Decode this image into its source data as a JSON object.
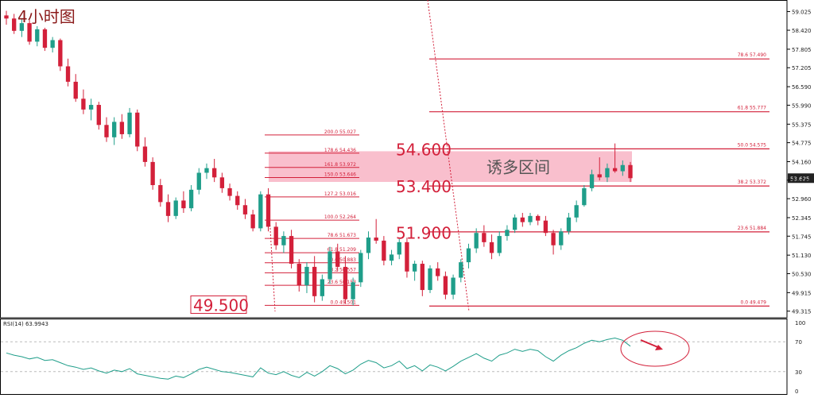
{
  "chart_data": [
    {
      "type": "candlestick",
      "title": "4小时图",
      "ylim": [
        49.1,
        59.4
      ],
      "y_ticks": [
        "59.025",
        "58.420",
        "57.805",
        "57.205",
        "56.590",
        "55.990",
        "55.375",
        "54.775",
        "54.160",
        "53.560",
        "52.960",
        "52.345",
        "51.745",
        "51.130",
        "50.530",
        "49.915",
        "49.315"
      ],
      "last_price": "53.625",
      "colors": {
        "up": "#1f9e8a",
        "down": "#d3203a",
        "fib": "#d3203a",
        "zone": "#f8b4c4",
        "last_price_bg": "#222222"
      },
      "zone": {
        "top": 54.6,
        "bottom": 53.4,
        "label": "诱多区间"
      },
      "big_levels": [
        {
          "text": "54.600",
          "value": 54.6
        },
        {
          "text": "53.400",
          "value": 53.4
        },
        {
          "text": "51.900",
          "value": 51.9
        }
      ],
      "boxed_level": {
        "text": "49.500",
        "value": 49.5
      },
      "fib_left": [
        {
          "label": "200.0  55.027",
          "value": 55.027
        },
        {
          "label": "178.6  54.436",
          "value": 54.436
        },
        {
          "label": "161.8  53.972",
          "value": 53.972
        },
        {
          "label": "150.0  53.646",
          "value": 53.646
        },
        {
          "label": "127.2  53.016",
          "value": 53.016
        },
        {
          "label": "100.0  52.264",
          "value": 52.264
        },
        {
          "label": "78.6  51.673",
          "value": 51.673
        },
        {
          "label": "61.8  51.209",
          "value": 51.209
        },
        {
          "label": "50.0  50.883",
          "value": 50.883
        },
        {
          "label": "38.2  50.557",
          "value": 50.557
        },
        {
          "label": "23.6  50.153",
          "value": 50.153
        },
        {
          "label": "0.0  49.501",
          "value": 49.501
        }
      ],
      "fib_right": [
        {
          "label": "78.6  57.490",
          "value": 57.49
        },
        {
          "label": "61.8  55.777",
          "value": 55.777
        },
        {
          "label": "50.0  54.575",
          "value": 54.575
        },
        {
          "label": "38.2  53.372",
          "value": 53.372
        },
        {
          "label": "23.6  51.884",
          "value": 51.884
        },
        {
          "label": "0.0  49.479",
          "value": 49.479
        }
      ],
      "candles": [
        [
          58.9,
          59.05,
          58.6,
          58.8
        ],
        [
          58.8,
          58.95,
          58.3,
          58.4
        ],
        [
          58.4,
          58.8,
          58.2,
          58.65
        ],
        [
          58.65,
          58.75,
          57.95,
          58.05
        ],
        [
          58.05,
          58.55,
          57.9,
          58.45
        ],
        [
          58.45,
          58.5,
          57.75,
          57.85
        ],
        [
          57.85,
          58.2,
          57.7,
          58.1
        ],
        [
          58.1,
          58.15,
          57.1,
          57.25
        ],
        [
          57.25,
          57.5,
          56.6,
          56.75
        ],
        [
          56.75,
          57.0,
          56.1,
          56.2
        ],
        [
          56.2,
          56.5,
          55.7,
          55.85
        ],
        [
          55.85,
          56.2,
          55.5,
          56.0
        ],
        [
          56.0,
          56.1,
          55.2,
          55.35
        ],
        [
          55.35,
          55.6,
          54.8,
          54.95
        ],
        [
          54.95,
          55.6,
          54.7,
          55.45
        ],
        [
          55.45,
          55.7,
          54.9,
          55.05
        ],
        [
          55.05,
          55.9,
          54.95,
          55.75
        ],
        [
          55.75,
          55.85,
          54.5,
          54.65
        ],
        [
          54.65,
          54.95,
          54.0,
          54.15
        ],
        [
          54.15,
          54.3,
          53.25,
          53.4
        ],
        [
          53.4,
          53.6,
          52.7,
          52.85
        ],
        [
          52.85,
          53.1,
          52.2,
          52.4
        ],
        [
          52.4,
          53.0,
          52.3,
          52.9
        ],
        [
          52.9,
          53.2,
          52.5,
          52.65
        ],
        [
          52.65,
          53.4,
          52.55,
          53.25
        ],
        [
          53.25,
          53.95,
          53.1,
          53.8
        ],
        [
          53.8,
          54.1,
          53.6,
          53.95
        ],
        [
          53.95,
          54.25,
          53.5,
          53.65
        ],
        [
          53.65,
          53.8,
          53.15,
          53.3
        ],
        [
          53.3,
          53.45,
          52.9,
          53.05
        ],
        [
          53.05,
          53.2,
          52.6,
          52.75
        ],
        [
          52.75,
          52.95,
          52.3,
          52.45
        ],
        [
          52.45,
          52.6,
          51.9,
          52.0
        ],
        [
          52.0,
          53.2,
          51.9,
          53.1
        ],
        [
          53.1,
          53.3,
          51.9,
          52.05
        ],
        [
          52.05,
          52.2,
          51.3,
          51.45
        ],
        [
          51.45,
          51.9,
          51.2,
          51.75
        ],
        [
          51.75,
          51.95,
          50.7,
          50.85
        ],
        [
          50.85,
          51.0,
          49.95,
          50.15
        ],
        [
          50.15,
          50.9,
          49.9,
          50.75
        ],
        [
          50.75,
          51.1,
          49.6,
          49.8
        ],
        [
          49.8,
          50.5,
          49.65,
          50.35
        ],
        [
          50.35,
          51.4,
          50.2,
          51.25
        ],
        [
          51.25,
          51.5,
          50.6,
          50.75
        ],
        [
          50.75,
          51.1,
          49.55,
          49.7
        ],
        [
          49.7,
          50.4,
          49.5,
          50.25
        ],
        [
          50.25,
          51.3,
          50.1,
          51.2
        ],
        [
          51.2,
          51.9,
          51.0,
          51.7
        ],
        [
          51.7,
          52.3,
          51.5,
          51.6
        ],
        [
          51.6,
          51.75,
          50.8,
          50.95
        ],
        [
          50.95,
          51.3,
          50.8,
          51.15
        ],
        [
          51.15,
          51.65,
          51.0,
          51.55
        ],
        [
          51.55,
          51.7,
          50.4,
          50.6
        ],
        [
          50.6,
          50.95,
          50.3,
          50.85
        ],
        [
          50.85,
          50.95,
          49.8,
          50.0
        ],
        [
          50.0,
          50.8,
          49.9,
          50.7
        ],
        [
          50.7,
          50.9,
          50.3,
          50.45
        ],
        [
          50.45,
          50.6,
          49.7,
          49.85
        ],
        [
          49.85,
          50.5,
          49.7,
          50.4
        ],
        [
          50.4,
          51.0,
          50.25,
          50.9
        ],
        [
          50.9,
          51.5,
          50.7,
          51.35
        ],
        [
          51.35,
          52.0,
          51.2,
          51.85
        ],
        [
          51.85,
          52.1,
          51.4,
          51.55
        ],
        [
          51.55,
          51.8,
          51.0,
          51.2
        ],
        [
          51.2,
          51.9,
          51.1,
          51.75
        ],
        [
          51.75,
          52.1,
          51.6,
          51.95
        ],
        [
          51.95,
          52.45,
          51.85,
          52.35
        ],
        [
          52.35,
          52.5,
          52.05,
          52.2
        ],
        [
          52.2,
          52.5,
          52.1,
          52.4
        ],
        [
          52.4,
          52.45,
          52.1,
          52.25
        ],
        [
          52.25,
          52.4,
          51.75,
          51.85
        ],
        [
          51.85,
          51.95,
          51.15,
          51.45
        ],
        [
          51.45,
          52.0,
          51.3,
          51.9
        ],
        [
          51.9,
          52.5,
          51.8,
          52.35
        ],
        [
          52.35,
          52.9,
          52.2,
          52.75
        ],
        [
          52.75,
          53.4,
          52.7,
          53.3
        ],
        [
          53.3,
          53.9,
          53.2,
          53.75
        ],
        [
          53.75,
          54.3,
          53.55,
          53.65
        ],
        [
          53.65,
          54.1,
          53.5,
          53.95
        ],
        [
          53.95,
          54.75,
          53.8,
          53.85
        ],
        [
          53.85,
          54.2,
          53.7,
          54.05
        ],
        [
          54.05,
          54.15,
          53.5,
          53.625
        ]
      ],
      "rsi": {
        "label": "RSI(14) 63.9943",
        "ylim": [
          0,
          100
        ],
        "ticks": [
          "100",
          "70",
          "30",
          "0"
        ],
        "levels": [
          70,
          30
        ],
        "values": [
          55,
          52,
          50,
          47,
          49,
          45,
          46,
          42,
          38,
          36,
          33,
          35,
          31,
          28,
          32,
          30,
          34,
          27,
          25,
          23,
          21,
          20,
          24,
          22,
          27,
          33,
          36,
          33,
          30,
          29,
          27,
          25,
          23,
          35,
          28,
          26,
          30,
          25,
          22,
          29,
          24,
          30,
          38,
          34,
          27,
          32,
          40,
          45,
          42,
          35,
          38,
          44,
          34,
          38,
          31,
          39,
          36,
          31,
          37,
          44,
          49,
          54,
          48,
          44,
          52,
          55,
          60,
          57,
          60,
          58,
          50,
          44,
          52,
          58,
          62,
          68,
          72,
          70,
          73,
          75,
          72,
          63.9943
        ]
      },
      "rsi_colors": {
        "line": "#1f9e8a",
        "level": "#bbbbbb",
        "ellipse": "#d3203a"
      }
    }
  ]
}
